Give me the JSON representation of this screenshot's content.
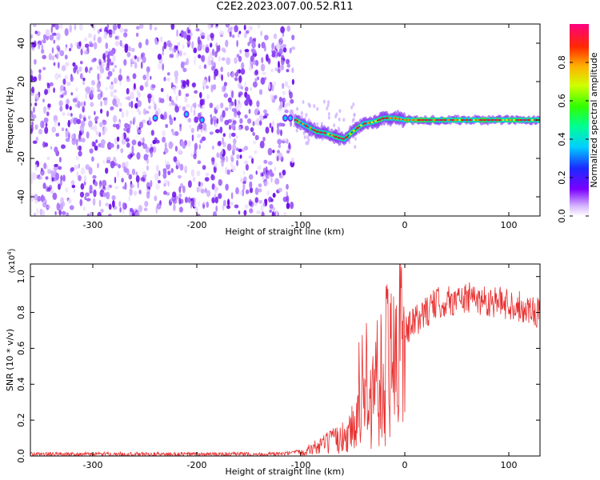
{
  "title": "C2E2.2023.007.00.52.R11",
  "spectrogram": {
    "xlabel": "Height of straight line (km)",
    "ylabel": "Frequency (Hz)",
    "xlim": [
      -360,
      130
    ],
    "ylim": [
      -50,
      50
    ],
    "xticks": [
      -300,
      -200,
      -100,
      0,
      100
    ],
    "yticks": [
      -40,
      -20,
      0,
      20,
      40
    ],
    "noise_region_end_km": -107,
    "signal_track": [
      {
        "x": -105,
        "y": 0
      },
      {
        "x": -95,
        "y": -3
      },
      {
        "x": -85,
        "y": -6
      },
      {
        "x": -75,
        "y": -7
      },
      {
        "x": -65,
        "y": -9
      },
      {
        "x": -58,
        "y": -10
      },
      {
        "x": -50,
        "y": -6
      },
      {
        "x": -40,
        "y": -2
      },
      {
        "x": -30,
        "y": -1
      },
      {
        "x": -20,
        "y": 1
      },
      {
        "x": -10,
        "y": 1
      },
      {
        "x": 0,
        "y": 0
      },
      {
        "x": 50,
        "y": 0
      },
      {
        "x": 100,
        "y": 0
      },
      {
        "x": 130,
        "y": 0
      }
    ],
    "isolated_blobs": [
      {
        "x": -240,
        "y": 1
      },
      {
        "x": -210,
        "y": 3
      },
      {
        "x": -195,
        "y": 0
      },
      {
        "x": -115,
        "y": 1
      },
      {
        "x": -110,
        "y": 1
      }
    ],
    "colors": {
      "noise": "#7b2cf0",
      "track": "#00e070",
      "core": "#e82020",
      "line": "#2222aa"
    }
  },
  "colorbar": {
    "label": "Normalized spectral amplitude",
    "ticks": [
      "0.0",
      "0.2",
      "0.4",
      "0.6",
      "0.8"
    ],
    "tick_values": [
      0.0,
      0.2,
      0.4,
      0.6,
      0.8
    ],
    "range": [
      0,
      1
    ]
  },
  "snr": {
    "xlabel": "Height of straight line (km)",
    "ylabel": "SNR (10 * v/v)",
    "scale_label": "(x10",
    "scale_exp": "4",
    "scale_close": ")",
    "xlim": [
      -360,
      130
    ],
    "ylim": [
      0,
      1.07
    ],
    "xticks": [
      -300,
      -200,
      -100,
      0,
      100
    ],
    "yticks": [
      "0.0",
      "0.2",
      "0.4",
      "0.6",
      "0.8",
      "1.0"
    ],
    "ytick_values": [
      0.0,
      0.2,
      0.4,
      0.6,
      0.8,
      1.0
    ],
    "line_color": "#e83030",
    "envelope": [
      {
        "x": -360,
        "y": 0.01
      },
      {
        "x": -120,
        "y": 0.01
      },
      {
        "x": -100,
        "y": 0.02
      },
      {
        "x": -80,
        "y": 0.06
      },
      {
        "x": -60,
        "y": 0.1
      },
      {
        "x": -45,
        "y": 0.2
      },
      {
        "x": -35,
        "y": 0.35
      },
      {
        "x": -25,
        "y": 0.45
      },
      {
        "x": -15,
        "y": 0.55
      },
      {
        "x": -5,
        "y": 0.65
      },
      {
        "x": 10,
        "y": 0.75
      },
      {
        "x": 30,
        "y": 0.85
      },
      {
        "x": 60,
        "y": 0.88
      },
      {
        "x": 100,
        "y": 0.85
      },
      {
        "x": 130,
        "y": 0.8
      }
    ]
  }
}
